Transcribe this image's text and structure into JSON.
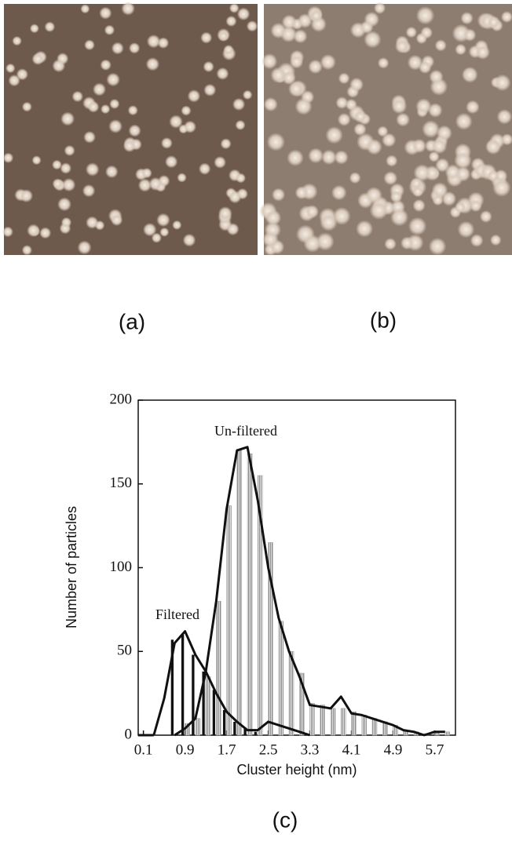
{
  "panels": [
    {
      "label": "(a)"
    },
    {
      "label": "(b)"
    },
    {
      "label": "(c)"
    }
  ],
  "chart_data": {
    "type": "bar",
    "x_label": "Cluster height (nm)",
    "y_label": "Number of particles",
    "xlim": [
      0,
      6.1
    ],
    "ylim": [
      0,
      200
    ],
    "xticks": [
      0.1,
      0.9,
      1.7,
      2.5,
      3.3,
      4.1,
      4.9,
      5.7
    ],
    "yticks": [
      0,
      50,
      100,
      150,
      200
    ],
    "series": [
      {
        "name": "Filtered",
        "color": "#111111",
        "x": [
          0.7,
          0.9,
          1.1,
          1.3,
          1.5,
          1.7,
          1.9,
          2.1,
          2.3
        ],
        "values": [
          57,
          60,
          48,
          38,
          27,
          15,
          8,
          4,
          2
        ],
        "curve": {
          "x": [
            0.3,
            0.5,
            0.7,
            0.9,
            1.1,
            1.3,
            1.5,
            1.7,
            1.9,
            2.1,
            2.3,
            2.5,
            2.7,
            2.9,
            3.1,
            3.3
          ],
          "values": [
            0,
            22,
            55,
            62,
            48,
            38,
            25,
            14,
            8,
            3,
            3,
            8,
            6,
            4,
            2,
            0
          ]
        }
      },
      {
        "name": "Un-filtered",
        "color": "#9a9a9a",
        "x": [
          0.9,
          1.1,
          1.3,
          1.5,
          1.7,
          1.9,
          2.1,
          2.3,
          2.5,
          2.7,
          2.9,
          3.1,
          3.3,
          3.5,
          3.7,
          3.9,
          4.1,
          4.3,
          4.5,
          4.7,
          4.9,
          5.1,
          5.3,
          5.5,
          5.7,
          5.9
        ],
        "values": [
          7,
          10,
          35,
          80,
          137,
          170,
          168,
          155,
          115,
          68,
          50,
          37,
          19,
          18,
          16,
          16,
          14,
          12,
          10,
          8,
          6,
          3,
          2,
          1,
          2,
          2
        ],
        "curve": {
          "x": [
            0.7,
            0.9,
            1.1,
            1.3,
            1.5,
            1.7,
            1.9,
            2.1,
            2.3,
            2.5,
            2.7,
            2.9,
            3.1,
            3.3,
            3.5,
            3.7,
            3.9,
            4.1,
            4.3,
            4.5,
            4.7,
            4.9,
            5.1,
            5.3,
            5.5,
            5.7,
            5.9
          ],
          "values": [
            0,
            4,
            10,
            38,
            80,
            135,
            170,
            172,
            140,
            100,
            70,
            50,
            35,
            18,
            17,
            16,
            23,
            13,
            12,
            10,
            8,
            6,
            3,
            2,
            0,
            2,
            2
          ]
        }
      }
    ]
  }
}
